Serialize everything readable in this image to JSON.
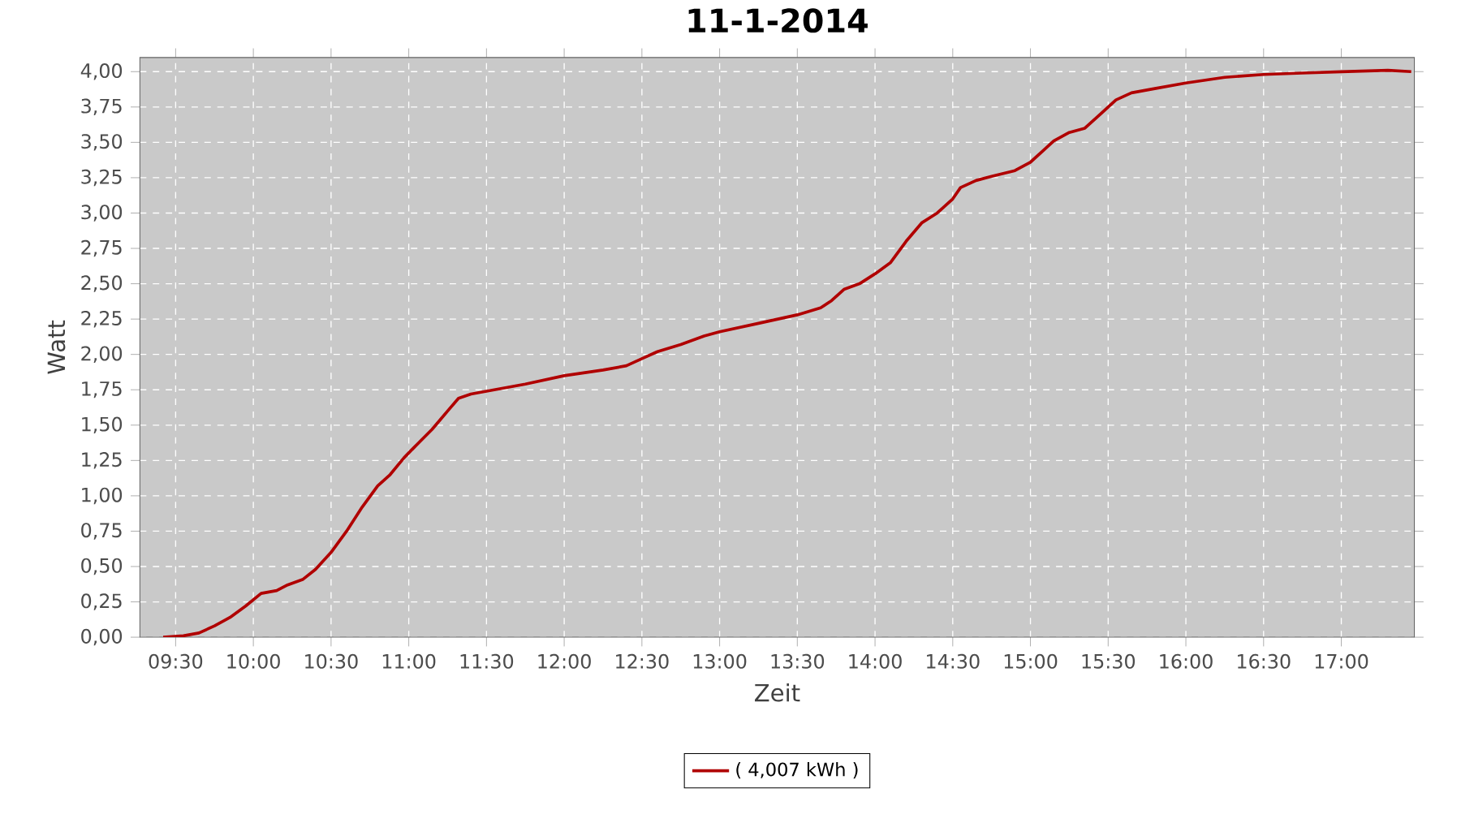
{
  "chart_data": {
    "type": "line",
    "title": "11-1-2014",
    "xlabel": "Zeit",
    "ylabel": "Watt",
    "x": [
      9.42,
      9.55,
      9.65,
      9.75,
      9.85,
      9.95,
      10.05,
      10.15,
      10.22,
      10.32,
      10.4,
      10.5,
      10.6,
      10.7,
      10.8,
      10.88,
      10.97,
      11.05,
      11.15,
      11.25,
      11.32,
      11.4,
      11.5,
      11.75,
      12.0,
      12.25,
      12.4,
      12.5,
      12.6,
      12.75,
      12.9,
      13.0,
      13.25,
      13.5,
      13.65,
      13.72,
      13.8,
      13.9,
      14.0,
      14.1,
      14.2,
      14.3,
      14.4,
      14.5,
      14.55,
      14.65,
      14.75,
      14.9,
      15.0,
      15.07,
      15.15,
      15.25,
      15.35,
      15.45,
      15.55,
      15.65,
      15.8,
      16.0,
      16.25,
      16.5,
      16.75,
      17.0,
      17.3,
      17.45
    ],
    "series": [
      {
        "name": "( 4,007 kWh )",
        "color": "#b00000",
        "values": [
          0,
          0.01,
          0.03,
          0.08,
          0.14,
          0.22,
          0.31,
          0.33,
          0.37,
          0.41,
          0.48,
          0.6,
          0.75,
          0.92,
          1.07,
          1.15,
          1.27,
          1.36,
          1.47,
          1.6,
          1.69,
          1.72,
          1.74,
          1.79,
          1.85,
          1.89,
          1.92,
          1.97,
          2.02,
          2.07,
          2.13,
          2.16,
          2.22,
          2.28,
          2.33,
          2.38,
          2.46,
          2.5,
          2.57,
          2.65,
          2.8,
          2.93,
          3.0,
          3.1,
          3.18,
          3.23,
          3.26,
          3.3,
          3.36,
          3.43,
          3.51,
          3.57,
          3.6,
          3.7,
          3.8,
          3.85,
          3.88,
          3.92,
          3.96,
          3.98,
          3.99,
          4.0,
          4.01,
          4.0
        ]
      }
    ],
    "xlim": [
      9.27,
      17.47
    ],
    "ylim": [
      0,
      4.1
    ],
    "xticks": [
      {
        "value": 9.5,
        "label": "09:30"
      },
      {
        "value": 10,
        "label": "10:00"
      },
      {
        "value": 10.5,
        "label": "10:30"
      },
      {
        "value": 11,
        "label": "11:00"
      },
      {
        "value": 11.5,
        "label": "11:30"
      },
      {
        "value": 12,
        "label": "12:00"
      },
      {
        "value": 12.5,
        "label": "12:30"
      },
      {
        "value": 13,
        "label": "13:00"
      },
      {
        "value": 13.5,
        "label": "13:30"
      },
      {
        "value": 14,
        "label": "14:00"
      },
      {
        "value": 14.5,
        "label": "14:30"
      },
      {
        "value": 15,
        "label": "15:00"
      },
      {
        "value": 15.5,
        "label": "15:30"
      },
      {
        "value": 16,
        "label": "16:00"
      },
      {
        "value": 16.5,
        "label": "16:30"
      },
      {
        "value": 17,
        "label": "17:00"
      }
    ],
    "yticks": [
      {
        "value": 0,
        "label": "0,00"
      },
      {
        "value": 0.25,
        "label": "0,25"
      },
      {
        "value": 0.5,
        "label": "0,50"
      },
      {
        "value": 0.75,
        "label": "0,75"
      },
      {
        "value": 1,
        "label": "1,00"
      },
      {
        "value": 1.25,
        "label": "1,25"
      },
      {
        "value": 1.5,
        "label": "1,50"
      },
      {
        "value": 1.75,
        "label": "1,75"
      },
      {
        "value": 2,
        "label": "2,00"
      },
      {
        "value": 2.25,
        "label": "2,25"
      },
      {
        "value": 2.5,
        "label": "2,50"
      },
      {
        "value": 2.75,
        "label": "2,75"
      },
      {
        "value": 3,
        "label": "3,00"
      },
      {
        "value": 3.25,
        "label": "3,25"
      },
      {
        "value": 3.5,
        "label": "3,50"
      },
      {
        "value": 3.75,
        "label": "3,75"
      },
      {
        "value": 4,
        "label": "4,00"
      }
    ],
    "grid": true,
    "legend": "bottom",
    "marker": "none",
    "line_style": "solid"
  }
}
